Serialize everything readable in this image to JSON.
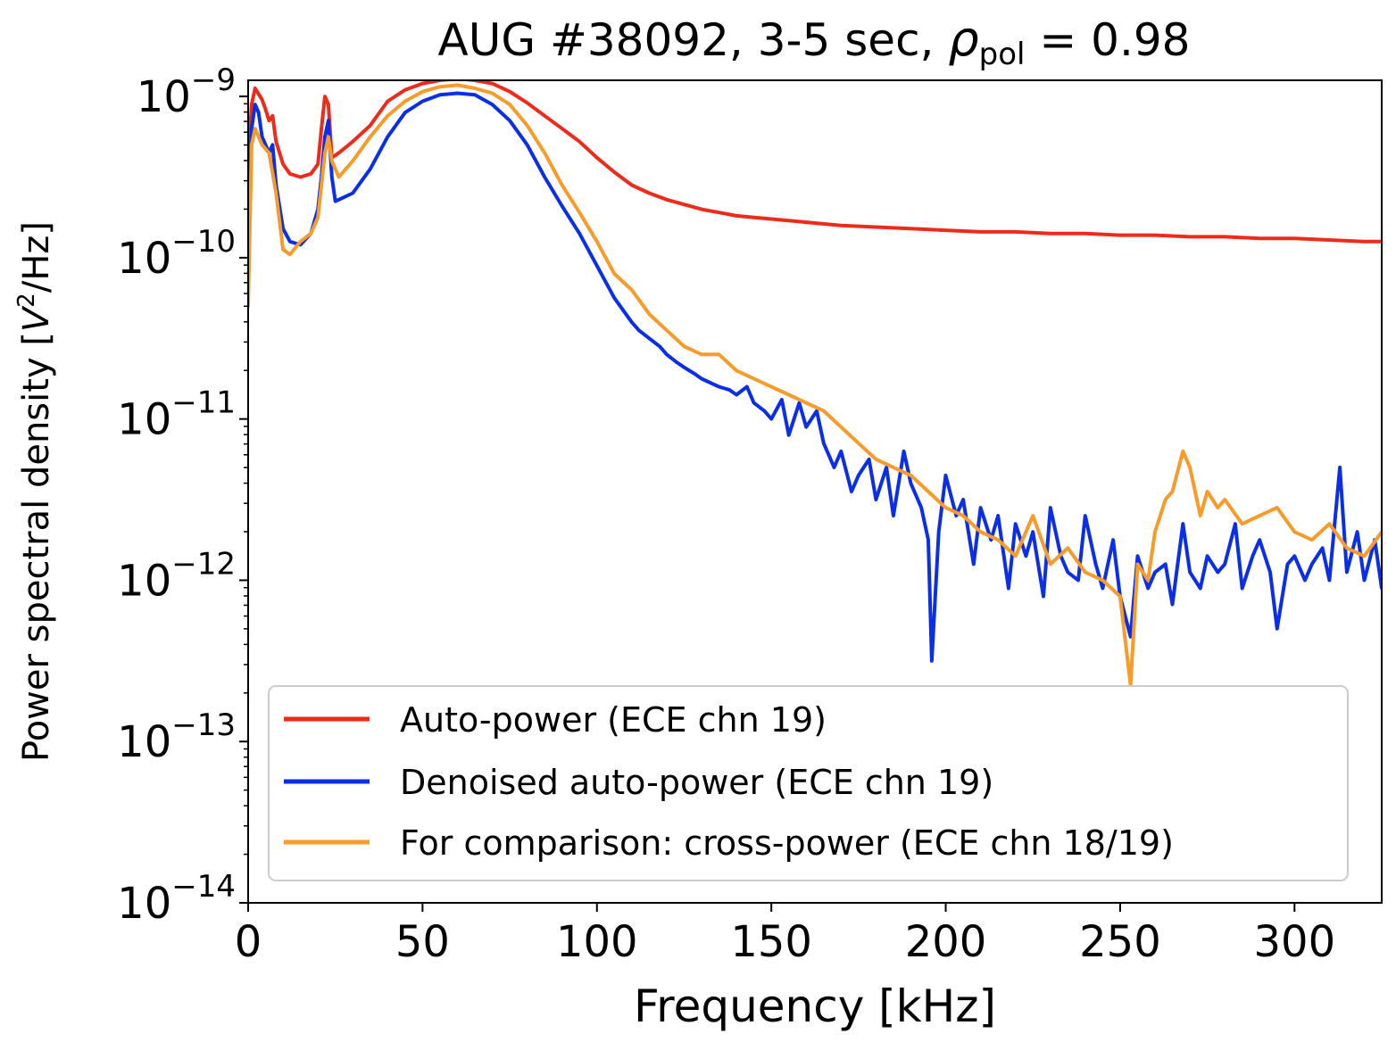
{
  "colors": {
    "auto": "#ee2a1b",
    "denoised": "#0b2ee8",
    "cross": "#f79b2b",
    "axis": "#000000",
    "legend_border": "#cccccc"
  },
  "chart_data": {
    "type": "line",
    "title": {
      "main": "AUG #38092, 3-5 sec, ",
      "symbol": "ρ",
      "sub": "pol",
      "rest": " = 0.98"
    },
    "xlabel": "Frequency [kHz]",
    "ylabel": {
      "pre": "Power spectral density [",
      "var": "V",
      "sup": "2",
      "post": "/Hz]"
    },
    "xlim": [
      0,
      325
    ],
    "ylim_log10": [
      -14,
      -8.9
    ],
    "xscale": "linear",
    "yscale": "log",
    "xticks": [
      {
        "value": 0,
        "label": "0"
      },
      {
        "value": 50,
        "label": "50"
      },
      {
        "value": 100,
        "label": "100"
      },
      {
        "value": 150,
        "label": "150"
      },
      {
        "value": 200,
        "label": "200"
      },
      {
        "value": 250,
        "label": "250"
      },
      {
        "value": 300,
        "label": "300"
      }
    ],
    "yticks": [
      {
        "exp": -9,
        "base": "10",
        "sup": "−9"
      },
      {
        "exp": -10,
        "base": "10",
        "sup": "−10"
      },
      {
        "exp": -11,
        "base": "10",
        "sup": "−11"
      },
      {
        "exp": -12,
        "base": "10",
        "sup": "−12"
      },
      {
        "exp": -13,
        "base": "10",
        "sup": "−13"
      },
      {
        "exp": -14,
        "base": "10",
        "sup": "−14"
      }
    ],
    "legend": {
      "location": "lower right",
      "entries": [
        {
          "series": "auto",
          "label": "Auto-power (ECE chn 19)"
        },
        {
          "series": "denoised",
          "label": "Denoised auto-power (ECE chn 19)"
        },
        {
          "series": "cross",
          "label": "For comparison: cross-power (ECE chn 18/19)"
        }
      ]
    },
    "series": [
      {
        "key": "auto",
        "name": "Auto-power (ECE chn 19)",
        "color": "#ee2a1b",
        "x": [
          0,
          1,
          2,
          4,
          5,
          6,
          7,
          8,
          10,
          12,
          15,
          18,
          20,
          21,
          22,
          23,
          24,
          26,
          30,
          35,
          40,
          45,
          50,
          55,
          60,
          65,
          70,
          75,
          80,
          85,
          90,
          95,
          100,
          105,
          110,
          115,
          120,
          125,
          130,
          135,
          140,
          145,
          150,
          160,
          170,
          180,
          190,
          200,
          210,
          220,
          230,
          240,
          250,
          260,
          270,
          280,
          290,
          300,
          310,
          320,
          325
        ],
        "log10y": [
          -9.4,
          -9.05,
          -8.95,
          -9.02,
          -9.08,
          -9.15,
          -9.12,
          -9.28,
          -9.42,
          -9.48,
          -9.5,
          -9.48,
          -9.42,
          -9.2,
          -9.0,
          -9.05,
          -9.38,
          -9.35,
          -9.28,
          -9.18,
          -9.03,
          -8.96,
          -8.92,
          -8.9,
          -8.89,
          -8.9,
          -8.92,
          -8.97,
          -9.04,
          -9.12,
          -9.2,
          -9.28,
          -9.38,
          -9.47,
          -9.55,
          -9.6,
          -9.64,
          -9.67,
          -9.7,
          -9.72,
          -9.74,
          -9.75,
          -9.76,
          -9.78,
          -9.8,
          -9.81,
          -9.82,
          -9.83,
          -9.84,
          -9.84,
          -9.85,
          -9.85,
          -9.86,
          -9.86,
          -9.87,
          -9.87,
          -9.88,
          -9.88,
          -9.89,
          -9.9,
          -9.9
        ]
      },
      {
        "key": "denoised",
        "name": "Denoised auto-power (ECE chn 19)",
        "color": "#0b2ee8",
        "x": [
          0,
          1,
          2,
          3,
          4,
          5,
          6,
          7,
          8,
          10,
          12,
          15,
          18,
          20,
          21,
          22,
          23,
          24,
          25,
          30,
          35,
          40,
          45,
          50,
          55,
          60,
          65,
          70,
          75,
          80,
          85,
          90,
          95,
          100,
          105,
          110,
          112,
          115,
          118,
          120,
          123,
          125,
          128,
          130,
          133,
          135,
          138,
          140,
          143,
          145,
          148,
          150,
          153,
          155,
          158,
          160,
          163,
          165,
          168,
          170,
          173,
          175,
          178,
          180,
          183,
          185,
          188,
          190,
          193,
          195,
          196,
          198,
          200,
          203,
          205,
          208,
          210,
          213,
          215,
          218,
          220,
          223,
          225,
          228,
          230,
          233,
          235,
          238,
          240,
          243,
          245,
          248,
          250,
          253,
          255,
          258,
          260,
          263,
          265,
          268,
          270,
          273,
          275,
          278,
          280,
          283,
          285,
          288,
          290,
          293,
          295,
          298,
          300,
          303,
          305,
          308,
          310,
          313,
          315,
          318,
          320,
          323,
          325
        ],
        "log10y": [
          -10.1,
          -9.2,
          -9.05,
          -9.1,
          -9.25,
          -9.3,
          -9.35,
          -9.3,
          -9.55,
          -9.82,
          -9.9,
          -9.92,
          -9.85,
          -9.7,
          -9.5,
          -9.25,
          -9.15,
          -9.5,
          -9.65,
          -9.6,
          -9.45,
          -9.25,
          -9.1,
          -9.03,
          -8.99,
          -8.98,
          -8.99,
          -9.05,
          -9.15,
          -9.3,
          -9.5,
          -9.68,
          -9.85,
          -10.05,
          -10.25,
          -10.4,
          -10.45,
          -10.5,
          -10.55,
          -10.6,
          -10.65,
          -10.68,
          -10.72,
          -10.75,
          -10.78,
          -10.8,
          -10.82,
          -10.85,
          -10.8,
          -10.9,
          -10.95,
          -11.0,
          -10.88,
          -11.1,
          -10.9,
          -11.05,
          -10.95,
          -11.15,
          -11.3,
          -11.2,
          -11.45,
          -11.35,
          -11.25,
          -11.5,
          -11.3,
          -11.6,
          -11.2,
          -11.4,
          -11.55,
          -11.75,
          -12.5,
          -11.7,
          -11.35,
          -11.6,
          -11.5,
          -11.9,
          -11.55,
          -11.75,
          -11.6,
          -12.05,
          -11.65,
          -11.85,
          -11.7,
          -12.1,
          -11.55,
          -11.85,
          -11.95,
          -12.0,
          -11.6,
          -11.9,
          -12.05,
          -11.75,
          -12.1,
          -12.35,
          -11.85,
          -12.05,
          -11.95,
          -11.9,
          -12.15,
          -11.65,
          -11.95,
          -12.05,
          -11.85,
          -11.95,
          -11.9,
          -11.65,
          -12.05,
          -11.85,
          -11.75,
          -11.95,
          -12.3,
          -11.9,
          -11.85,
          -12.0,
          -11.9,
          -11.8,
          -12.0,
          -11.3,
          -11.95,
          -11.7,
          -12.0,
          -11.75,
          -12.05
        ]
      },
      {
        "key": "cross",
        "name": "For comparison: cross-power (ECE chn 18/19)",
        "color": "#f79b2b",
        "x": [
          0,
          1,
          2,
          4,
          6,
          8,
          10,
          12,
          15,
          18,
          20,
          21,
          22,
          23,
          24,
          26,
          30,
          35,
          40,
          45,
          50,
          55,
          60,
          65,
          70,
          75,
          80,
          85,
          90,
          95,
          100,
          105,
          110,
          115,
          120,
          125,
          130,
          135,
          140,
          145,
          150,
          155,
          160,
          165,
          170,
          175,
          180,
          185,
          190,
          195,
          200,
          205,
          210,
          215,
          220,
          225,
          230,
          235,
          240,
          245,
          250,
          253,
          255,
          258,
          260,
          263,
          265,
          268,
          270,
          273,
          275,
          278,
          280,
          285,
          290,
          295,
          300,
          305,
          310,
          315,
          320,
          325
        ],
        "log10y": [
          -10.3,
          -9.3,
          -9.2,
          -9.3,
          -9.35,
          -9.6,
          -9.95,
          -9.98,
          -9.9,
          -9.85,
          -9.75,
          -9.55,
          -9.35,
          -9.25,
          -9.4,
          -9.5,
          -9.4,
          -9.25,
          -9.12,
          -9.03,
          -8.97,
          -8.94,
          -8.93,
          -8.95,
          -8.98,
          -9.05,
          -9.18,
          -9.35,
          -9.55,
          -9.72,
          -9.9,
          -10.1,
          -10.2,
          -10.35,
          -10.45,
          -10.55,
          -10.6,
          -10.6,
          -10.7,
          -10.75,
          -10.8,
          -10.85,
          -10.9,
          -10.95,
          -11.05,
          -11.15,
          -11.25,
          -11.3,
          -11.35,
          -11.45,
          -11.55,
          -11.6,
          -11.7,
          -11.75,
          -11.85,
          -11.6,
          -11.9,
          -11.8,
          -11.95,
          -12.0,
          -12.1,
          -12.65,
          -11.9,
          -12.0,
          -11.7,
          -11.5,
          -11.45,
          -11.2,
          -11.3,
          -11.6,
          -11.45,
          -11.55,
          -11.5,
          -11.65,
          -11.6,
          -11.55,
          -11.7,
          -11.75,
          -11.65,
          -11.8,
          -11.85,
          -11.7
        ]
      }
    ]
  }
}
